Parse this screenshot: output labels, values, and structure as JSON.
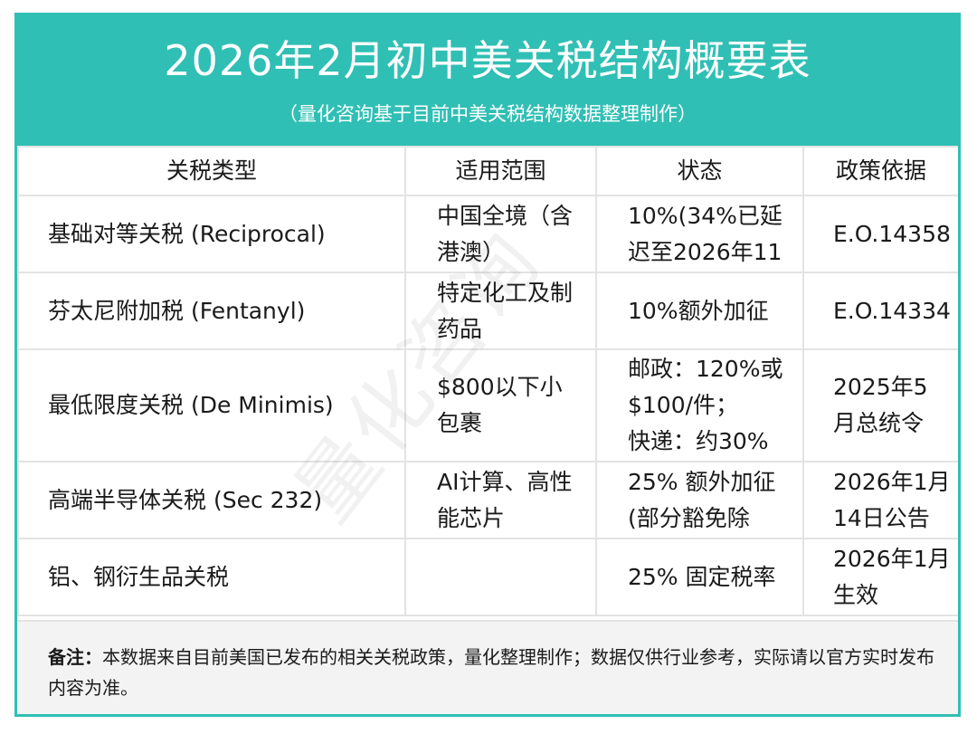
{
  "header": {
    "title": "2026年2月初中美关税结构概要表",
    "subtitle": "（量化咨询基于目前中美关税结构数据整理制作）"
  },
  "table": {
    "columns": [
      "关税类型",
      "适用范围",
      "状态",
      "政策依据"
    ],
    "rows": [
      {
        "type": "基础对等关税 (Reciprocal)",
        "scope": "中国全境（含\n港澳）",
        "status": "10%(34%已延\n迟至2026年11",
        "basis": "E.O.14358"
      },
      {
        "type": "芬太尼附加税 (Fentanyl)",
        "scope": "特定化工及制\n药品",
        "status": "10%额外加征",
        "basis": "E.O.14334"
      },
      {
        "type": "最低限度关税 (De Minimis)",
        "scope": "$800以下小\n包裹",
        "status": "邮政：120%或\n$100/件；\n快递：约30%",
        "basis": "2025年5\n月总统令"
      },
      {
        "type": "高端半导体关税 (Sec 232)",
        "scope": "AI计算、高性\n能芯片",
        "status": "25% 额外加征\n(部分豁免除",
        "basis": "2026年1月\n14日公告"
      },
      {
        "type": "铝、钢衍生品关税",
        "scope": "",
        "status": "25% 固定税率",
        "basis": "2026年1月\n生效"
      }
    ]
  },
  "note": {
    "label": "备注：",
    "text": "本数据来自目前美国已发布的相关关税政策，量化整理制作；数据仅供行业参考，实际请以官方实时发布内容为准。"
  },
  "watermark": "量化咨询",
  "colors": {
    "accent": "#30bfb4",
    "grid": "#e3e3e3",
    "note_bg": "#f3f3f3"
  }
}
